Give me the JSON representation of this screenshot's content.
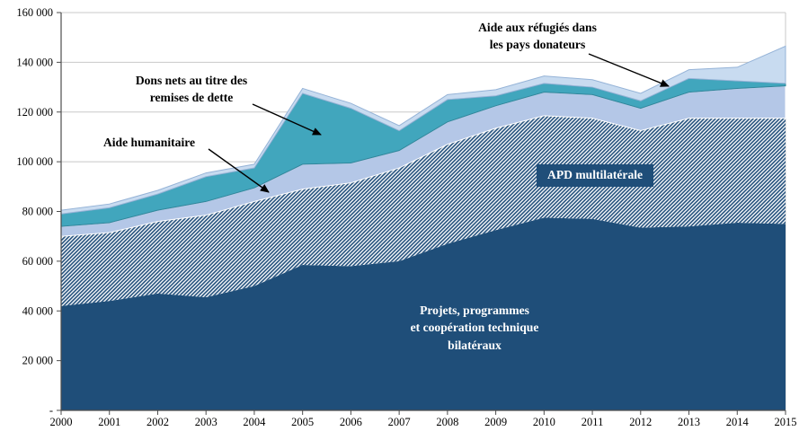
{
  "chart_data": {
    "type": "area",
    "stacked": true,
    "title": "",
    "xlabel": "",
    "ylabel": "",
    "x": [
      2000,
      2001,
      2002,
      2003,
      2004,
      2005,
      2006,
      2007,
      2008,
      2009,
      2010,
      2011,
      2012,
      2013,
      2014,
      2015
    ],
    "ylim": [
      0,
      160000
    ],
    "ytick_step": 20000,
    "ytick_labels": [
      "-",
      "20 000",
      "40 000",
      "60 000",
      "80 000",
      "100 000",
      "120 000",
      "140 000",
      "160 000"
    ],
    "grid": true,
    "legend_position": "annotations-on-chart",
    "series": [
      {
        "name": "Projets, programmes et coopération technique bilatéraux",
        "values": [
          42000,
          44000,
          47000,
          45500,
          50000,
          58500,
          58000,
          60000,
          67000,
          72500,
          77500,
          77000,
          73500,
          74000,
          75500,
          75000
        ],
        "color": "#1F4E79",
        "fill": "solid"
      },
      {
        "name": "APD multilatérale",
        "values": [
          28000,
          27500,
          29000,
          33000,
          34000,
          30500,
          33500,
          37500,
          40000,
          41000,
          41000,
          40500,
          39000,
          43500,
          42000,
          42500
        ],
        "color": "#24517D",
        "fill": "hatch"
      },
      {
        "name": "Aide humanitaire",
        "values": [
          4000,
          4000,
          4500,
          5500,
          5500,
          10000,
          8000,
          7000,
          9000,
          9000,
          9500,
          9500,
          9000,
          10500,
          12000,
          13000
        ],
        "color": "#B4C7E7",
        "fill": "solid",
        "stroke": "#FFFFFF"
      },
      {
        "name": "Dons nets au titre des remises de dette",
        "values": [
          5000,
          6000,
          6500,
          10000,
          8000,
          28500,
          22000,
          8000,
          9000,
          4000,
          3500,
          3000,
          3000,
          5500,
          3000,
          1000
        ],
        "color": "#41A6BD",
        "fill": "solid",
        "stroke": "#31859B"
      },
      {
        "name": "Aide aux réfugiés dans les pays donateurs",
        "values": [
          1500,
          1500,
          1500,
          1500,
          1500,
          2000,
          2000,
          2000,
          2000,
          2500,
          3000,
          3000,
          3000,
          3500,
          5500,
          15000
        ],
        "color": "#C8DBF0",
        "fill": "solid",
        "stroke": "#95B3D7"
      }
    ]
  },
  "annotations": {
    "refugies": {
      "lines": [
        "Aide aux réfugiés dans",
        "les pays donateurs"
      ]
    },
    "dette": {
      "lines": [
        "Dons nets au titre des",
        "remises de dette"
      ]
    },
    "humanitaire": {
      "label": "Aide humanitaire"
    },
    "multilaterale": {
      "label": "APD multilatérale"
    },
    "bilateral": {
      "lines": [
        "Projets, programmes",
        "et coopération technique",
        "bilatéraux"
      ]
    }
  },
  "colors": {
    "accent_dark_blue": "#1F4E79",
    "teal": "#41A6BD",
    "pale_blue": "#B4C7E7",
    "palest_blue": "#C8DBF0",
    "gridline": "#C8C8C8",
    "axis": "#4D4D4D"
  }
}
